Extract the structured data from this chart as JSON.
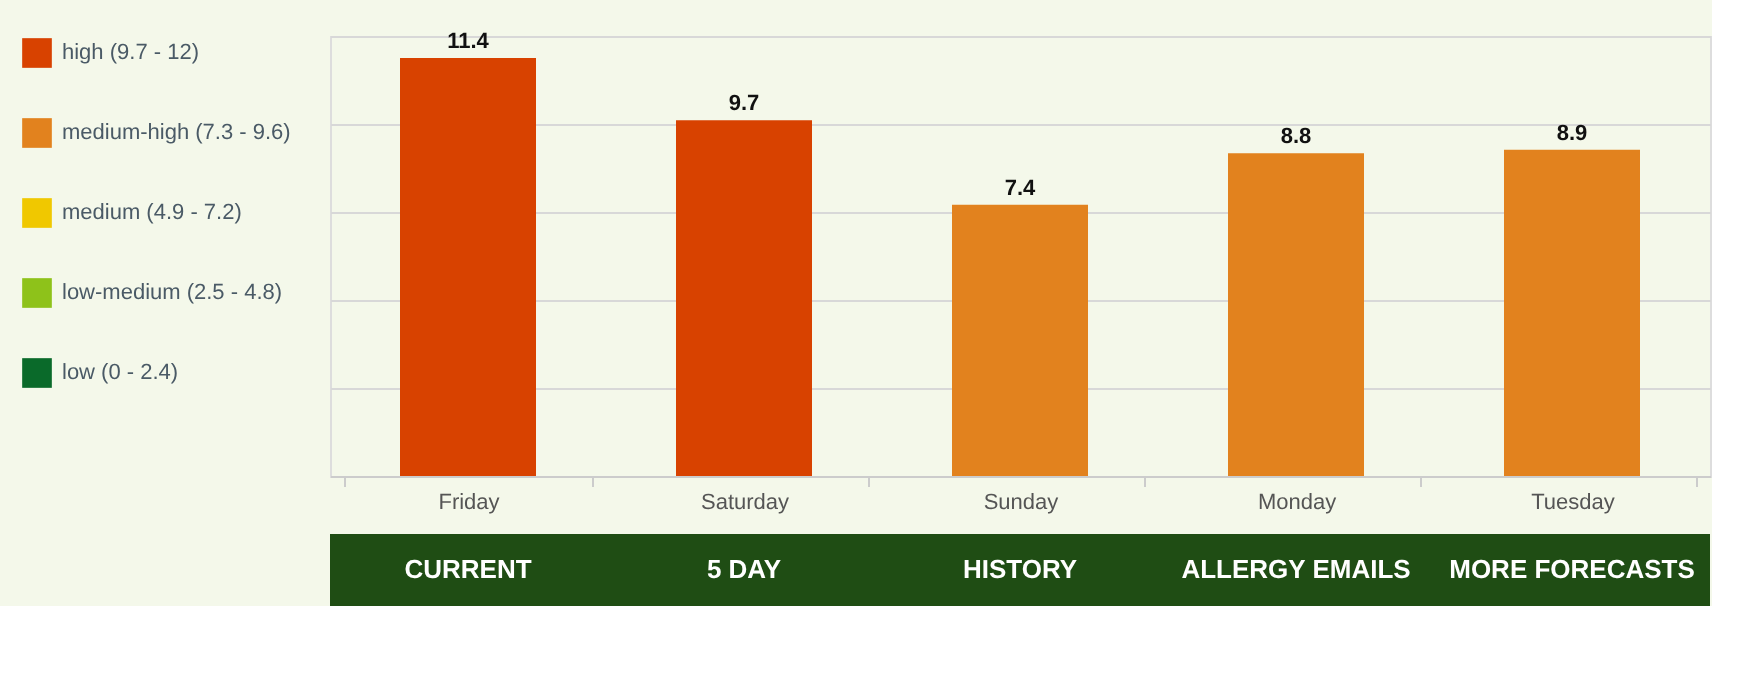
{
  "chart_data": {
    "type": "bar",
    "categories": [
      "Friday",
      "Saturday",
      "Sunday",
      "Monday",
      "Tuesday"
    ],
    "series": [
      {
        "name": "high (9.7 - 12)",
        "color": "#d84200",
        "values": [
          11.4,
          9.7,
          null,
          null,
          null
        ]
      },
      {
        "name": "medium-high (7.3 - 9.6)",
        "color": "#e2821e",
        "values": [
          null,
          null,
          7.4,
          8.8,
          8.9
        ]
      },
      {
        "name": "medium (4.9 - 7.2)",
        "color": "#f0c800",
        "values": [
          null,
          null,
          null,
          null,
          null
        ]
      },
      {
        "name": "low-medium (2.5 - 4.8)",
        "color": "#8ec21a",
        "values": [
          null,
          null,
          null,
          null,
          null
        ]
      },
      {
        "name": "low (0 - 2.4)",
        "color": "#0a6a2a",
        "values": [
          null,
          null,
          null,
          null,
          null
        ]
      }
    ],
    "ylim": [
      0,
      12
    ],
    "yticks": [
      {
        "value": 0,
        "label": null
      },
      {
        "value": 2.4,
        "label": null
      },
      {
        "value": 4.8,
        "label": null
      },
      {
        "value": 7.2,
        "label": null
      },
      {
        "value": 9.6,
        "label": null
      },
      {
        "value": 12,
        "label": null
      }
    ],
    "tick_labels": "x",
    "grid": "y",
    "legend": "left",
    "data_labels": true,
    "annotations": [
      "CURRENT",
      "5 DAY",
      "HISTORY",
      "ALLERGY EMAILS",
      "MORE FORECASTS"
    ]
  }
}
